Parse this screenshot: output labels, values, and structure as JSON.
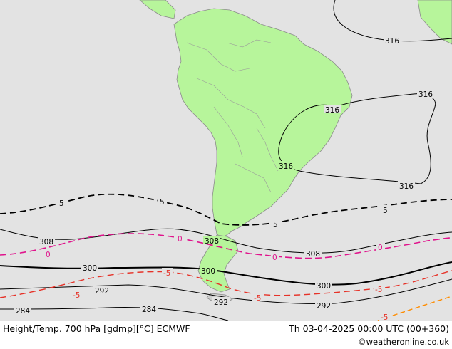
{
  "footer": {
    "title": "Height/Temp. 700 hPa [gdmp][°C] ECMWF",
    "datetime": "Th 03-04-2025 00:00 UTC (00+360)",
    "credit": "©weatheronline.co.uk"
  },
  "map": {
    "colors": {
      "ocean": "#e3e3e3",
      "land": "#b7f59b",
      "coast": "#8a8a8a",
      "geopotential": "#000000",
      "temp_negative": "#000000",
      "temp_zero": "#e0138c",
      "temp_minus5": "#e63228",
      "temp_positive": "#ff8c00"
    },
    "labels": {
      "g316_a": "316",
      "g316_b": "316",
      "g316_c": "316",
      "g316_d": "316",
      "g316_e": "316",
      "g308_a": "308",
      "g308_b": "308",
      "g308_c": "308",
      "g300_a": "300",
      "g300_b": "300",
      "g300_c": "300",
      "g292_a": "292",
      "g292_b": "292",
      "g292_c": "292",
      "g284_a": "284",
      "g284_b": "284",
      "t5_a": "5",
      "t5_b": "5",
      "t5_c": "5",
      "t5_d": "5",
      "t0_a": "0",
      "t0_b": "0",
      "t0_c": "0",
      "t0_d": "0",
      "tm5_a": "-5",
      "tm5_b": "-5",
      "tm5_c": "-5",
      "tm5_d": "-5",
      "tm5_e": "-5"
    }
  }
}
